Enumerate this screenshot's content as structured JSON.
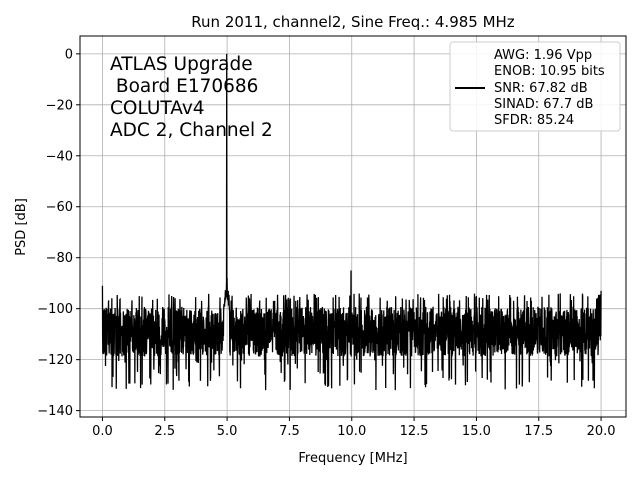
{
  "chart_data": {
    "type": "line",
    "title": "Run 2011, channel2, Sine Freq.: 4.985 MHz",
    "xlabel": "Frequency [MHz]",
    "ylabel": "PSD [dB]",
    "xlim": [
      -0.9,
      21.0
    ],
    "ylim": [
      -142.5,
      7.0
    ],
    "xticks": [
      0.0,
      2.5,
      5.0,
      7.5,
      10.0,
      12.5,
      15.0,
      17.5,
      20.0
    ],
    "xtick_labels": [
      "0.0",
      "2.5",
      "5.0",
      "7.5",
      "10.0",
      "12.5",
      "15.0",
      "17.5",
      "20.0"
    ],
    "yticks": [
      0,
      -20,
      -40,
      -60,
      -80,
      -100,
      -120,
      -140
    ],
    "ytick_labels": [
      "0",
      "−20",
      "−40",
      "−60",
      "−80",
      "−100",
      "−120",
      "−140"
    ],
    "grid": true,
    "annotation": [
      "ATLAS Upgrade",
      " Board E170686",
      "COLUTAv4",
      "ADC 2, Channel 2"
    ],
    "legend": {
      "placement": "top-right",
      "entries": [
        "AWG: 1.96 Vpp",
        "ENOB: 10.95 bits",
        "SNR: 67.82 dB",
        "SINAD: 67.7 dB",
        "SFDR: 85.24"
      ]
    },
    "series": [
      {
        "color": "#000000",
        "noise_floor": {
          "x_range": [
            0.0,
            20.0
          ],
          "mean": -109,
          "typical_min": -120,
          "typical_max": -97,
          "deep_min": -132
        },
        "peaks": [
          {
            "x": 0.0,
            "y": -91
          },
          {
            "x": 4.985,
            "y": 0.0
          },
          {
            "x": 5.0,
            "y": -88
          },
          {
            "x": 9.97,
            "y": -85
          },
          {
            "x": 15.0,
            "y": -95
          },
          {
            "x": 20.0,
            "y": -93
          }
        ]
      }
    ]
  }
}
